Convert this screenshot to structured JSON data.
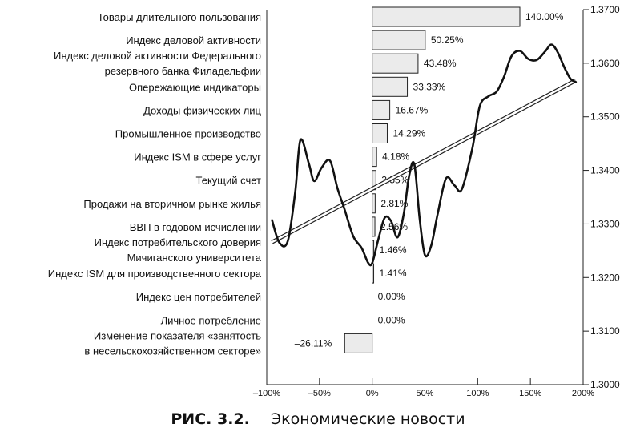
{
  "chart_data": {
    "type": "bar",
    "orientation": "horizontal",
    "categories": [
      [
        "Товары длительного пользования"
      ],
      [
        "Индекс деловой активности"
      ],
      [
        "Индекс деловой активности Федерального",
        "резервного банка Филадельфии"
      ],
      [
        "Опережающие индикаторы"
      ],
      [
        "Доходы физических лиц"
      ],
      [
        "Промышленное производство"
      ],
      [
        "Индекс ISM в сфере услуг"
      ],
      [
        "Текущий счет"
      ],
      [
        "Продажи на вторичном рынке жилья"
      ],
      [
        "ВВП в годовом исчислении"
      ],
      [
        "Индекс потребительского доверия",
        "Мичиганского университета"
      ],
      [
        "Индекс ISM для производственного сектора"
      ],
      [
        "Индекс цен потребителей"
      ],
      [
        "Личное потребление"
      ],
      [
        "Изменение показателя «занятость",
        "в несельскохозяйственном секторе»"
      ]
    ],
    "values": [
      140.0,
      50.25,
      43.48,
      33.33,
      16.67,
      14.29,
      4.18,
      3.55,
      2.81,
      2.56,
      1.46,
      1.41,
      0.0,
      0.0,
      -26.11
    ],
    "value_labels": [
      "140.00%",
      "50.25%",
      "43.48%",
      "33.33%",
      "16.67%",
      "14.29%",
      "4.18%",
      "3.55%",
      "2.81%",
      "2.56%",
      "1.46%",
      "1.41%",
      "0.00%",
      "0.00%",
      "–26.11%"
    ],
    "xlim": [
      -100,
      200
    ],
    "x_ticks": [
      -100,
      -50,
      0,
      50,
      100,
      150,
      200
    ],
    "x_tick_labels": [
      "–100%",
      "–50%",
      "0%",
      "50%",
      "100%",
      "150%",
      "200%"
    ],
    "y2lim": [
      1.3,
      1.37
    ],
    "y2_ticks": [
      1.3,
      1.31,
      1.32,
      1.33,
      1.34,
      1.35,
      1.36,
      1.37
    ],
    "y2_tick_labels": [
      "1.3000",
      "1.3100",
      "1.3200",
      "1.3300",
      "1.3400",
      "1.3500",
      "1.3600",
      "1.3700"
    ],
    "overlay_price_line": {
      "x": [
        -95,
        -88,
        -80,
        -73,
        -68,
        -60,
        -55,
        -48,
        -40,
        -33,
        -26,
        -18,
        -10,
        -4,
        0,
        6,
        12,
        18,
        24,
        30,
        35,
        40,
        45,
        50,
        56,
        62,
        70,
        78,
        85,
        95,
        102,
        110,
        118,
        125,
        132,
        140,
        148,
        156,
        164,
        170,
        176,
        182,
        188,
        193
      ],
      "y": [
        1.3307,
        1.3265,
        1.3268,
        1.336,
        1.3457,
        1.3412,
        1.338,
        1.3405,
        1.3418,
        1.3367,
        1.3326,
        1.3277,
        1.3255,
        1.3228,
        1.3227,
        1.3273,
        1.3312,
        1.3305,
        1.3275,
        1.332,
        1.339,
        1.3411,
        1.331,
        1.3242,
        1.326,
        1.3318,
        1.3385,
        1.3372,
        1.3365,
        1.3442,
        1.352,
        1.3538,
        1.3547,
        1.3575,
        1.3613,
        1.3623,
        1.3608,
        1.3606,
        1.3622,
        1.3635,
        1.362,
        1.3593,
        1.3571,
        1.3565
      ]
    },
    "trend_channel": {
      "x": [
        -95,
        193
      ],
      "y": [
        1.3266,
        1.3568
      ]
    }
  },
  "caption": {
    "figure": "РИС. 3.2.",
    "title": "Экономические новости"
  }
}
